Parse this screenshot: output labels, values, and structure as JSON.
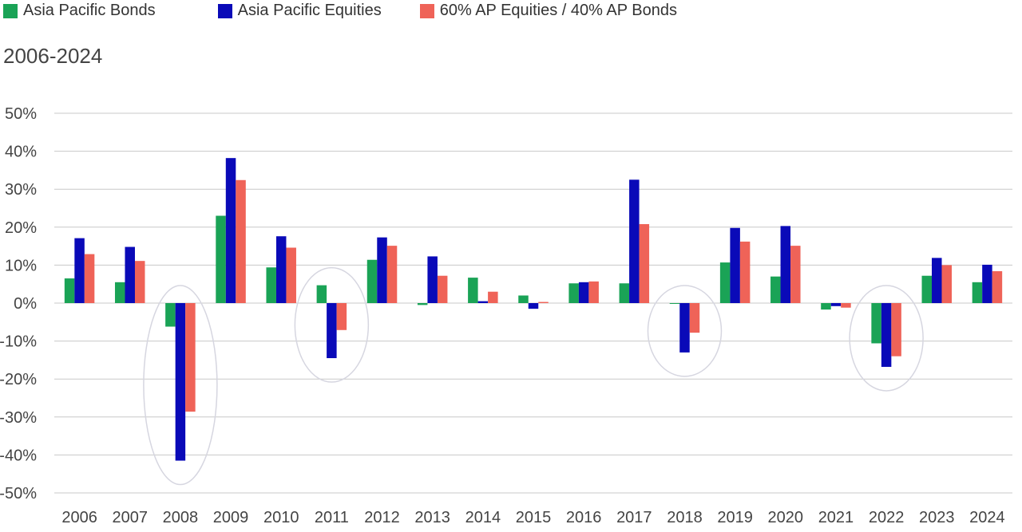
{
  "chart_data": {
    "type": "bar",
    "subtitle": "2006-2024",
    "categories": [
      "2006",
      "2007",
      "2008",
      "2009",
      "2010",
      "2011",
      "2012",
      "2013",
      "2014",
      "2015",
      "2016",
      "2017",
      "2018",
      "2019",
      "2020",
      "2021",
      "2022",
      "2023",
      "2024"
    ],
    "series": [
      {
        "name": "Asia Pacific Bonds",
        "color": "#1aa356",
        "values": [
          6.5,
          5.5,
          -6.2,
          23.0,
          9.4,
          4.7,
          11.4,
          -0.5,
          6.7,
          2.0,
          5.2,
          5.2,
          -0.2,
          10.7,
          7.0,
          -1.7,
          -10.6,
          7.2,
          5.5
        ]
      },
      {
        "name": "Asia Pacific Equities",
        "color": "#0a0ab8",
        "values": [
          17.1,
          14.8,
          -41.5,
          38.2,
          17.6,
          -14.5,
          17.3,
          12.3,
          0.5,
          -1.5,
          5.5,
          32.5,
          -13.0,
          19.8,
          20.3,
          -0.8,
          -16.8,
          11.9,
          10.1
        ]
      },
      {
        "name": "60% AP Equities / 40% AP Bonds",
        "color": "#ef6358",
        "values": [
          12.9,
          11.1,
          -28.6,
          32.4,
          14.6,
          -7.1,
          15.1,
          7.2,
          3.0,
          0.3,
          5.7,
          20.8,
          -7.8,
          16.2,
          15.1,
          -1.2,
          -14.0,
          10.0,
          8.4
        ]
      }
    ],
    "ylim": [
      -50,
      50
    ],
    "yticks": [
      "-50%",
      "-40%",
      "-30%",
      "-20%",
      "-10%",
      "0%",
      "10%",
      "20%",
      "30%",
      "40%",
      "50%"
    ],
    "grid": true,
    "legend_position": "top-left",
    "highlighted_categories": [
      "2008",
      "2011",
      "2018",
      "2022"
    ]
  }
}
